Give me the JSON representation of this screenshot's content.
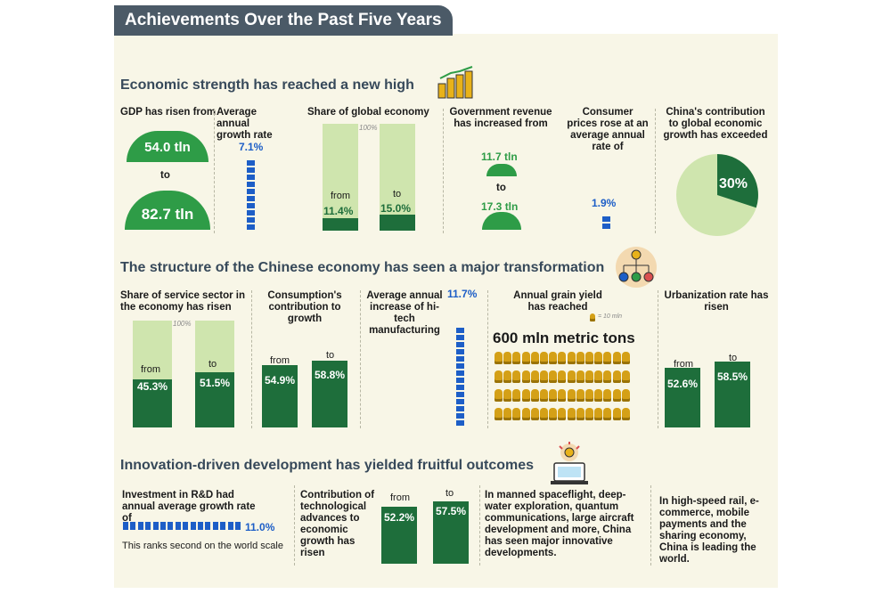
{
  "title": "Achievements Over the Past Five Years",
  "sections": {
    "economic": "Economic strength has reached a new high",
    "structure": "The structure of the Chinese economy has seen a major transformation",
    "innovation": "Innovation-driven development has yielded fruitful outcomes"
  },
  "gdp": {
    "label": "GDP has risen from",
    "from": "54.0 tln",
    "to_word": "to",
    "to": "82.7 tln"
  },
  "growth": {
    "label": "Average annual growth rate",
    "value": "7.1%"
  },
  "global_share": {
    "label": "Share of global economy",
    "full": "100%",
    "from_word": "from",
    "from": "11.4%",
    "to_word": "to",
    "to": "15.0%"
  },
  "revenue": {
    "label": "Government revenue has increased from",
    "from": "11.7 tln",
    "to_word": "to",
    "to": "17.3 tln"
  },
  "cpi": {
    "label": "Consumer prices rose at an average annual rate of",
    "value": "1.9%"
  },
  "contribution": {
    "label": "China's contribution to global economic growth has exceeded",
    "value": "30%"
  },
  "service": {
    "label": "Share of service sector in the economy has risen",
    "full": "100%",
    "from_word": "from",
    "from": "45.3%",
    "to_word": "to",
    "to": "51.5%"
  },
  "consumption": {
    "label": "Consumption's contribution to growth",
    "from_word": "from",
    "from": "54.9%",
    "to_word": "to",
    "to": "58.8%"
  },
  "hitech": {
    "label": "Average annual increase of hi-tech manufacturing",
    "value": "11.7%"
  },
  "grain": {
    "label": "Annual grain yield has reached",
    "legend": "= 10 mln",
    "value": "600 mln metric tons"
  },
  "urban": {
    "label": "Urbanization rate has risen",
    "from_word": "from",
    "from": "52.6%",
    "to_word": "to",
    "to": "58.5%"
  },
  "rd": {
    "label": "Investment in R&D had annual average growth rate of",
    "value": "11.0%",
    "note": "This ranks second on the world scale"
  },
  "tech": {
    "label": "Contribution of technological advances to economic growth has risen",
    "from_word": "from",
    "from": "52.2%",
    "to_word": "to",
    "to": "57.5%"
  },
  "innov_text": "In manned spaceflight, deep-water exploration, quantum communications, large aircraft development and more, China has seen major innovative developments.",
  "lead_text": "In high-speed rail, e-commerce, mobile payments and the sharing economy, China is leading the world.",
  "colors": {
    "dark_green": "#1e6e3b",
    "green": "#2e9c47",
    "light_green": "#cfe5ae",
    "blue": "#1d5ec7",
    "header": "#4b5a67"
  },
  "chart_data": [
    {
      "type": "bar",
      "title": "Share of global economy",
      "categories": [
        "from",
        "to"
      ],
      "values": [
        11.4,
        15.0
      ],
      "ylim": [
        0,
        100
      ]
    },
    {
      "type": "bar",
      "title": "Share of service sector in the economy has risen",
      "categories": [
        "from",
        "to"
      ],
      "values": [
        45.3,
        51.5
      ],
      "ylim": [
        0,
        100
      ]
    },
    {
      "type": "bar",
      "title": "Consumption's contribution to growth",
      "categories": [
        "from",
        "to"
      ],
      "values": [
        54.9,
        58.8
      ]
    },
    {
      "type": "bar",
      "title": "Urbanization rate has risen",
      "categories": [
        "from",
        "to"
      ],
      "values": [
        52.6,
        58.5
      ]
    },
    {
      "type": "bar",
      "title": "Contribution of technological advances to economic growth has risen",
      "categories": [
        "from",
        "to"
      ],
      "values": [
        52.2,
        57.5
      ]
    },
    {
      "type": "pie",
      "title": "China's contribution to global economic growth has exceeded",
      "values": [
        30,
        70
      ]
    },
    {
      "type": "bar",
      "title": "Average annual growth rate",
      "values": [
        7.1
      ]
    },
    {
      "type": "bar",
      "title": "Consumer prices rose at an average annual rate of",
      "values": [
        1.9
      ]
    },
    {
      "type": "bar",
      "title": "Average annual increase of hi-tech manufacturing",
      "values": [
        11.7
      ]
    },
    {
      "type": "bar",
      "title": "Investment in R&D had annual average growth rate of",
      "values": [
        11.0
      ]
    }
  ]
}
